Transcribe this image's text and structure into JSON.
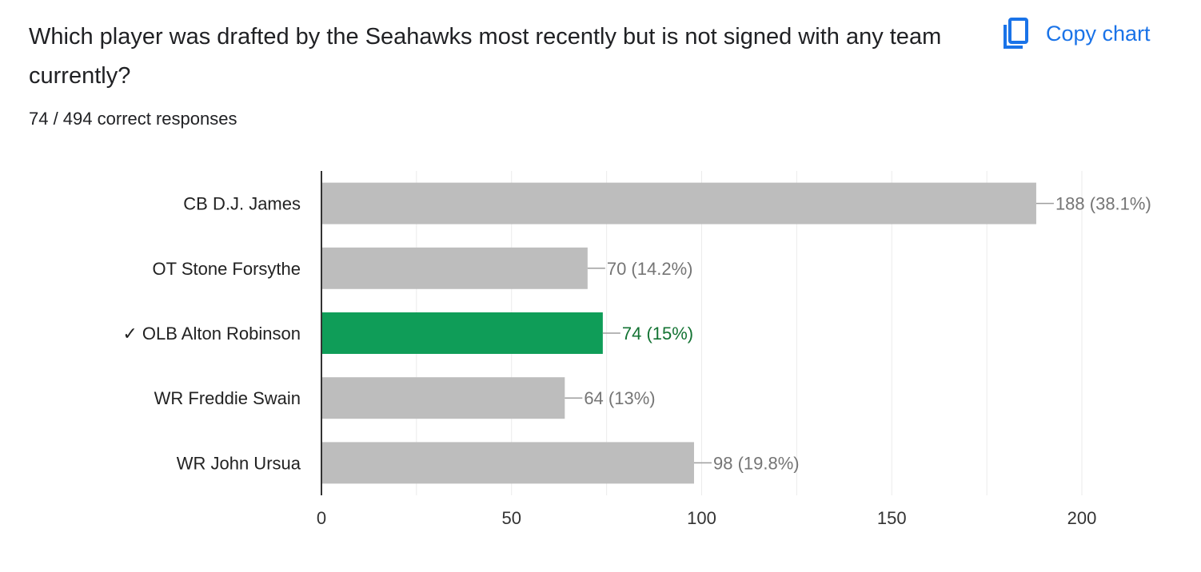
{
  "question": "Which player was drafted by the Seahawks most recently but is not signed with any team currently?",
  "summary": "74 / 494 correct responses",
  "copy_chart": {
    "label": "Copy chart",
    "icon": "copy-icon"
  },
  "colors": {
    "accent": "#1a73e8",
    "correct_bar": "#0f9d58",
    "correct_text": "#137333",
    "bar": "#bdbdbd",
    "value_label": "#757575"
  },
  "chart_data": {
    "type": "bar",
    "orientation": "horizontal",
    "categories": [
      "CB D.J. James",
      "OT Stone Forsythe",
      "✓ OLB Alton Robinson",
      "WR Freddie Swain",
      "WR John Ursua"
    ],
    "values": [
      188,
      70,
      74,
      64,
      98
    ],
    "value_labels": [
      "188 (38.1%)",
      "70 (14.2%)",
      "74 (15%)",
      "64 (13%)",
      "98 (19.8%)"
    ],
    "correct_index": 2,
    "xlim": [
      0,
      200
    ],
    "xticks": [
      0,
      50,
      100,
      150,
      200
    ],
    "grid": true
  }
}
